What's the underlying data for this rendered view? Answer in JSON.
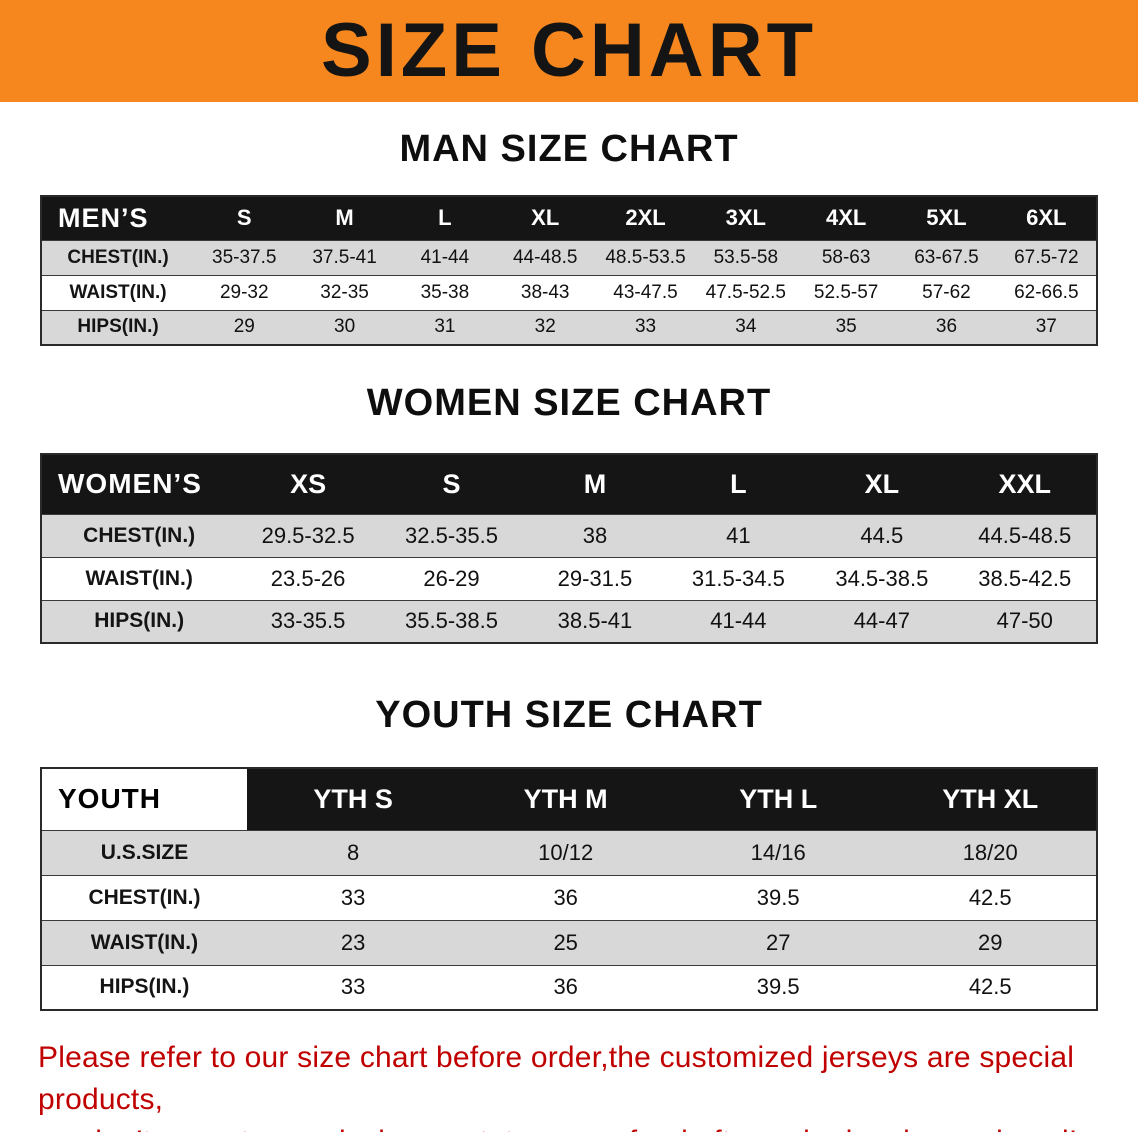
{
  "banner": {
    "title": "SIZE CHART"
  },
  "colors": {
    "banner_bg": "#F6871E",
    "table_header_bg": "#151515",
    "row_shaded": "#D8D8D8",
    "notice_red": "#C00000"
  },
  "sections": [
    {
      "id": "men",
      "heading": "MAN SIZE CHART",
      "table": {
        "header": [
          "MEN’S",
          "S",
          "M",
          "L",
          "XL",
          "2XL",
          "3XL",
          "4XL",
          "5XL",
          "6XL"
        ],
        "rows": [
          [
            "CHEST(IN.)",
            "35-37.5",
            "37.5-41",
            "41-44",
            "44-48.5",
            "48.5-53.5",
            "53.5-58",
            "58-63",
            "63-67.5",
            "67.5-72"
          ],
          [
            "WAIST(IN.)",
            "29-32",
            "32-35",
            "35-38",
            "38-43",
            "43-47.5",
            "47.5-52.5",
            "52.5-57",
            "57-62",
            "62-66.5"
          ],
          [
            "HIPS(IN.)",
            "29",
            "30",
            "31",
            "32",
            "33",
            "34",
            "35",
            "36",
            "37"
          ]
        ]
      }
    },
    {
      "id": "women",
      "heading": "WOMEN SIZE CHART",
      "table": {
        "header": [
          "WOMEN’S",
          "XS",
          "S",
          "M",
          "L",
          "XL",
          "XXL"
        ],
        "rows": [
          [
            "CHEST(IN.)",
            "29.5-32.5",
            "32.5-35.5",
            "38",
            "41",
            "44.5",
            "44.5-48.5"
          ],
          [
            "WAIST(IN.)",
            "23.5-26",
            "26-29",
            "29-31.5",
            "31.5-34.5",
            "34.5-38.5",
            "38.5-42.5"
          ],
          [
            "HIPS(IN.)",
            "33-35.5",
            "35.5-38.5",
            "38.5-41",
            "41-44",
            "44-47",
            "47-50"
          ]
        ]
      }
    },
    {
      "id": "youth",
      "heading": "YOUTH SIZE CHART",
      "table": {
        "header": [
          "YOUTH",
          "YTH S",
          "YTH M",
          "YTH L",
          "YTH XL"
        ],
        "rows": [
          [
            "U.S.SIZE",
            "8",
            "10/12",
            "14/16",
            "18/20"
          ],
          [
            "CHEST(IN.)",
            "33",
            "36",
            "39.5",
            "42.5"
          ],
          [
            "WAIST(IN.)",
            "23",
            "25",
            "27",
            "29"
          ],
          [
            "HIPS(IN.)",
            "33",
            "36",
            "39.5",
            "42.5"
          ]
        ]
      }
    }
  ],
  "footer": {
    "line1": "Please refer to our size chart before order,the customized jerseys are special products,",
    "line2": "we don’t accept cancel, change, teturn or refund after order has been placed!"
  }
}
